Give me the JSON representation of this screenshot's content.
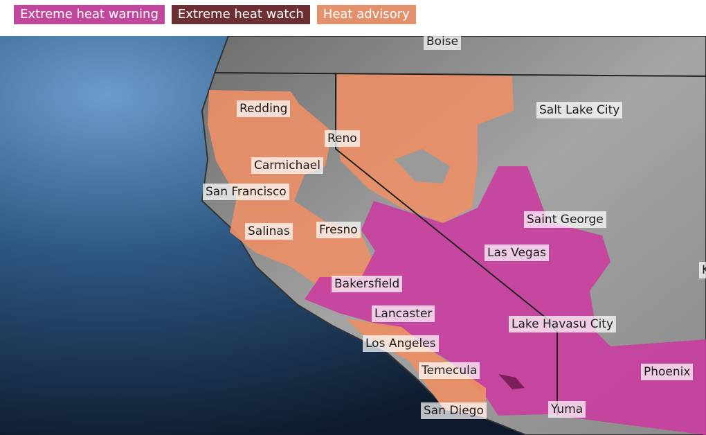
{
  "legend": [
    {
      "label": "Extreme heat warning",
      "color": "#c0479b"
    },
    {
      "label": "Extreme heat watch",
      "color": "#6e2f33"
    },
    {
      "label": "Heat advisory",
      "color": "#e3916d"
    }
  ],
  "cities": [
    "Boise",
    "Redding",
    "Salt Lake City",
    "Reno",
    "Carmichael",
    "San Francisco",
    "Saint George",
    "Salinas",
    "Fresno",
    "Las Vegas",
    "Bakersfield",
    "Lancaster",
    "Lake Havasu City",
    "Los Angeles",
    "Temecula",
    "Phoenix",
    "San Diego",
    "Yuma",
    "K"
  ],
  "colors": {
    "ocean": "#1d3e63",
    "land": "#8e8e8e",
    "warning_fill": "#c93fa0",
    "advisory_fill": "#ea8f66"
  }
}
